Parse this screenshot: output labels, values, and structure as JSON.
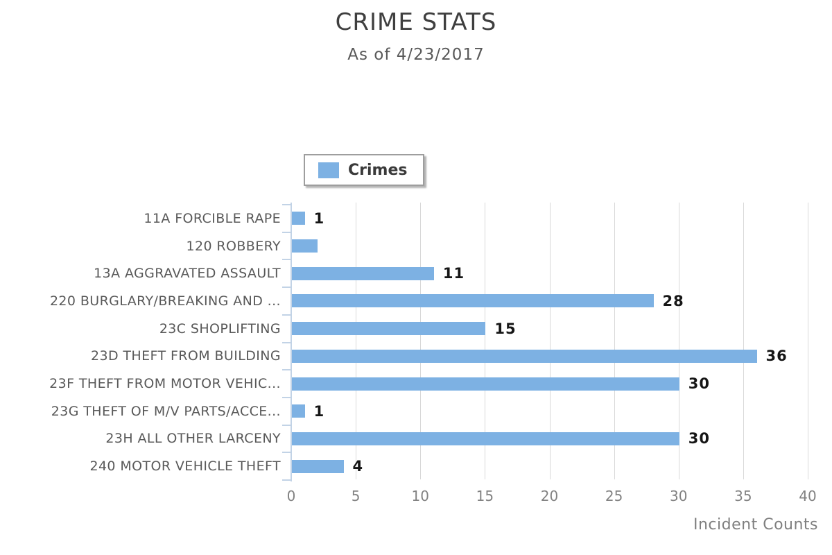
{
  "header": {
    "title": "CRIME STATS",
    "subtitle": "As of 4/23/2017"
  },
  "legend": {
    "label": "Crimes"
  },
  "chart_data": {
    "type": "bar",
    "orientation": "horizontal",
    "title": "CRIME STATS",
    "subtitle": "As of 4/23/2017",
    "xlabel": "Incident Counts",
    "ylabel": "",
    "categories": [
      "11A FORCIBLE RAPE",
      "120 ROBBERY",
      "13A AGGRAVATED ASSAULT",
      "220 BURGLARY/BREAKING AND ...",
      "23C SHOPLIFTING",
      "23D THEFT FROM BUILDING",
      "23F THEFT FROM MOTOR VEHIC...",
      "23G THEFT OF M/V PARTS/ACCE...",
      "23H ALL OTHER LARCENY",
      "240 MOTOR VEHICLE THEFT"
    ],
    "series": [
      {
        "name": "Crimes",
        "values": [
          1,
          2,
          11,
          28,
          15,
          36,
          30,
          1,
          30,
          4
        ]
      }
    ],
    "data_labels": [
      "1",
      "",
      "11",
      "28",
      "15",
      "36",
      "30",
      "1",
      "30",
      "4"
    ],
    "xlim": [
      0,
      40
    ],
    "xticks": [
      0,
      5,
      10,
      15,
      20,
      25,
      30,
      35,
      40
    ],
    "grid": "vertical gridlines at each x tick",
    "legend_position": "top, above plot area"
  },
  "colors": {
    "bar": "#7db1e3",
    "axis_line": "#c2d3e6",
    "gridline": "#d8d8d8",
    "title_text": "#3f3f3f",
    "subtitle_text": "#595959",
    "category_text": "#595959",
    "tick_text": "#828282",
    "value_text": "#161616",
    "legend_border": "#9e9e9e"
  }
}
